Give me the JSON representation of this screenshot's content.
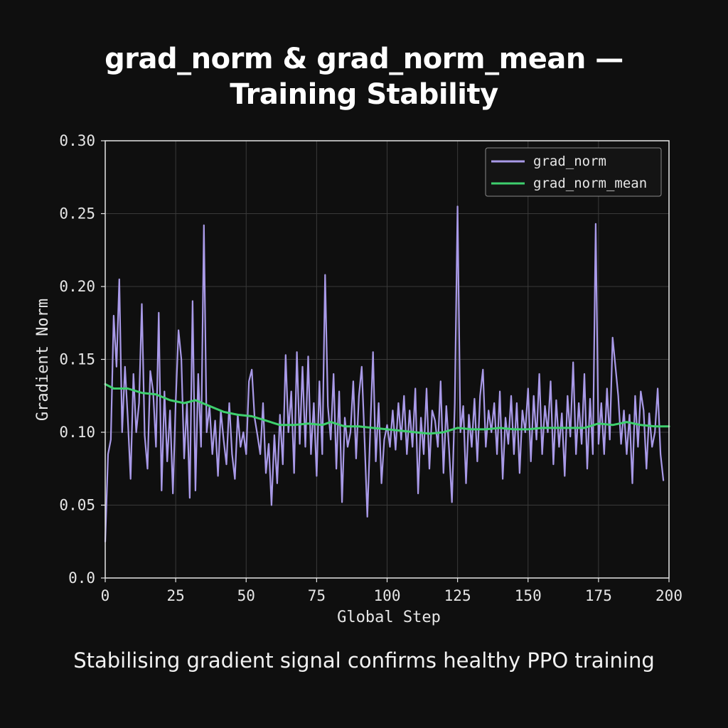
{
  "title_line1": "grad_norm & grad_norm_mean —",
  "title_line2": "Training Stability",
  "caption": "Stabilising gradient signal confirms healthy PPO training",
  "colors": {
    "background": "#0f0f0f",
    "grad_norm": "#a99ae8",
    "grad_norm_mean": "#3ecf6e",
    "grid": "#3a3a3a",
    "axes": "#e6e6e6"
  },
  "chart_data": {
    "type": "line",
    "xlabel": "Global Step",
    "ylabel": "Gradient Norm",
    "xlim": [
      0,
      200
    ],
    "ylim": [
      0,
      0.3
    ],
    "xticks": [
      0,
      25,
      50,
      75,
      100,
      125,
      150,
      175,
      200
    ],
    "xtick_labels": [
      "0",
      "25",
      "50",
      "75",
      "100",
      "125",
      "150",
      "175",
      "200"
    ],
    "yticks": [
      0.0,
      0.05,
      0.1,
      0.15,
      0.2,
      0.25,
      0.3
    ],
    "ytick_labels": [
      "0.0",
      "0.05",
      "0.10",
      "0.15",
      "0.20",
      "0.25",
      "0.30"
    ],
    "grid": true,
    "legend_position": "top-right",
    "series": [
      {
        "name": "grad_norm",
        "color": "#a99ae8",
        "points": [
          [
            0,
            0.025
          ],
          [
            1,
            0.085
          ],
          [
            2,
            0.095
          ],
          [
            3,
            0.18
          ],
          [
            4,
            0.145
          ],
          [
            5,
            0.205
          ],
          [
            6,
            0.1
          ],
          [
            7,
            0.145
          ],
          [
            8,
            0.11
          ],
          [
            9,
            0.068
          ],
          [
            10,
            0.14
          ],
          [
            11,
            0.1
          ],
          [
            12,
            0.12
          ],
          [
            13,
            0.188
          ],
          [
            14,
            0.098
          ],
          [
            15,
            0.075
          ],
          [
            16,
            0.142
          ],
          [
            17,
            0.128
          ],
          [
            18,
            0.09
          ],
          [
            19,
            0.182
          ],
          [
            20,
            0.06
          ],
          [
            21,
            0.128
          ],
          [
            22,
            0.08
          ],
          [
            23,
            0.115
          ],
          [
            24,
            0.058
          ],
          [
            25,
            0.12
          ],
          [
            26,
            0.17
          ],
          [
            27,
            0.15
          ],
          [
            28,
            0.082
          ],
          [
            29,
            0.12
          ],
          [
            30,
            0.055
          ],
          [
            31,
            0.19
          ],
          [
            32,
            0.06
          ],
          [
            33,
            0.14
          ],
          [
            34,
            0.09
          ],
          [
            35,
            0.242
          ],
          [
            36,
            0.1
          ],
          [
            37,
            0.118
          ],
          [
            38,
            0.085
          ],
          [
            39,
            0.108
          ],
          [
            40,
            0.07
          ],
          [
            41,
            0.115
          ],
          [
            42,
            0.095
          ],
          [
            43,
            0.078
          ],
          [
            44,
            0.12
          ],
          [
            45,
            0.085
          ],
          [
            46,
            0.068
          ],
          [
            47,
            0.112
          ],
          [
            48,
            0.09
          ],
          [
            49,
            0.1
          ],
          [
            50,
            0.085
          ],
          [
            51,
            0.135
          ],
          [
            52,
            0.143
          ],
          [
            53,
            0.11
          ],
          [
            54,
            0.098
          ],
          [
            55,
            0.085
          ],
          [
            56,
            0.12
          ],
          [
            57,
            0.072
          ],
          [
            58,
            0.092
          ],
          [
            59,
            0.05
          ],
          [
            60,
            0.098
          ],
          [
            61,
            0.065
          ],
          [
            62,
            0.112
          ],
          [
            63,
            0.078
          ],
          [
            64,
            0.153
          ],
          [
            65,
            0.1
          ],
          [
            66,
            0.128
          ],
          [
            67,
            0.072
          ],
          [
            68,
            0.155
          ],
          [
            69,
            0.092
          ],
          [
            70,
            0.145
          ],
          [
            71,
            0.09
          ],
          [
            72,
            0.152
          ],
          [
            73,
            0.085
          ],
          [
            74,
            0.12
          ],
          [
            75,
            0.07
          ],
          [
            76,
            0.135
          ],
          [
            77,
            0.085
          ],
          [
            78,
            0.208
          ],
          [
            79,
            0.118
          ],
          [
            80,
            0.095
          ],
          [
            81,
            0.14
          ],
          [
            82,
            0.075
          ],
          [
            83,
            0.128
          ],
          [
            84,
            0.052
          ],
          [
            85,
            0.11
          ],
          [
            86,
            0.09
          ],
          [
            87,
            0.1
          ],
          [
            88,
            0.135
          ],
          [
            89,
            0.082
          ],
          [
            90,
            0.125
          ],
          [
            91,
            0.145
          ],
          [
            92,
            0.095
          ],
          [
            93,
            0.042
          ],
          [
            94,
            0.1
          ],
          [
            95,
            0.155
          ],
          [
            96,
            0.08
          ],
          [
            97,
            0.12
          ],
          [
            98,
            0.065
          ],
          [
            99,
            0.095
          ],
          [
            100,
            0.105
          ],
          [
            101,
            0.09
          ],
          [
            102,
            0.115
          ],
          [
            103,
            0.088
          ],
          [
            104,
            0.12
          ],
          [
            105,
            0.095
          ],
          [
            106,
            0.125
          ],
          [
            107,
            0.085
          ],
          [
            108,
            0.115
          ],
          [
            109,
            0.09
          ],
          [
            110,
            0.13
          ],
          [
            111,
            0.058
          ],
          [
            112,
            0.11
          ],
          [
            113,
            0.085
          ],
          [
            114,
            0.13
          ],
          [
            115,
            0.075
          ],
          [
            116,
            0.115
          ],
          [
            117,
            0.108
          ],
          [
            118,
            0.09
          ],
          [
            119,
            0.135
          ],
          [
            120,
            0.072
          ],
          [
            121,
            0.118
          ],
          [
            122,
            0.088
          ],
          [
            123,
            0.052
          ],
          [
            124,
            0.12
          ],
          [
            125,
            0.255
          ],
          [
            126,
            0.1
          ],
          [
            127,
            0.118
          ],
          [
            128,
            0.065
          ],
          [
            129,
            0.112
          ],
          [
            130,
            0.09
          ],
          [
            131,
            0.123
          ],
          [
            132,
            0.08
          ],
          [
            133,
            0.125
          ],
          [
            134,
            0.143
          ],
          [
            135,
            0.09
          ],
          [
            136,
            0.115
          ],
          [
            137,
            0.1
          ],
          [
            138,
            0.12
          ],
          [
            139,
            0.085
          ],
          [
            140,
            0.128
          ],
          [
            141,
            0.068
          ],
          [
            142,
            0.11
          ],
          [
            143,
            0.092
          ],
          [
            144,
            0.125
          ],
          [
            145,
            0.085
          ],
          [
            146,
            0.12
          ],
          [
            147,
            0.072
          ],
          [
            148,
            0.115
          ],
          [
            149,
            0.1
          ],
          [
            150,
            0.13
          ],
          [
            151,
            0.08
          ],
          [
            152,
            0.125
          ],
          [
            153,
            0.095
          ],
          [
            154,
            0.14
          ],
          [
            155,
            0.085
          ],
          [
            156,
            0.118
          ],
          [
            157,
            0.1
          ],
          [
            158,
            0.135
          ],
          [
            159,
            0.078
          ],
          [
            160,
            0.122
          ],
          [
            161,
            0.09
          ],
          [
            162,
            0.113
          ],
          [
            163,
            0.07
          ],
          [
            164,
            0.125
          ],
          [
            165,
            0.097
          ],
          [
            166,
            0.148
          ],
          [
            167,
            0.085
          ],
          [
            168,
            0.12
          ],
          [
            169,
            0.092
          ],
          [
            170,
            0.14
          ],
          [
            171,
            0.075
          ],
          [
            172,
            0.123
          ],
          [
            173,
            0.085
          ],
          [
            174,
            0.243
          ],
          [
            175,
            0.092
          ],
          [
            176,
            0.12
          ],
          [
            177,
            0.085
          ],
          [
            178,
            0.13
          ],
          [
            179,
            0.095
          ],
          [
            180,
            0.165
          ],
          [
            181,
            0.145
          ],
          [
            182,
            0.125
          ],
          [
            183,
            0.092
          ],
          [
            184,
            0.115
          ],
          [
            185,
            0.085
          ],
          [
            186,
            0.112
          ],
          [
            187,
            0.065
          ],
          [
            188,
            0.125
          ],
          [
            189,
            0.09
          ],
          [
            190,
            0.128
          ],
          [
            191,
            0.115
          ],
          [
            192,
            0.075
          ],
          [
            193,
            0.113
          ],
          [
            194,
            0.09
          ],
          [
            195,
            0.1
          ],
          [
            196,
            0.13
          ],
          [
            197,
            0.085
          ],
          [
            198,
            0.067
          ]
        ]
      },
      {
        "name": "grad_norm_mean",
        "color": "#3ecf6e",
        "points": [
          [
            0,
            0.133
          ],
          [
            3,
            0.13
          ],
          [
            8,
            0.13
          ],
          [
            13,
            0.127
          ],
          [
            18,
            0.126
          ],
          [
            23,
            0.122
          ],
          [
            28,
            0.12
          ],
          [
            32,
            0.122
          ],
          [
            37,
            0.118
          ],
          [
            42,
            0.114
          ],
          [
            47,
            0.112
          ],
          [
            52,
            0.111
          ],
          [
            57,
            0.108
          ],
          [
            62,
            0.105
          ],
          [
            67,
            0.105
          ],
          [
            72,
            0.106
          ],
          [
            77,
            0.105
          ],
          [
            80,
            0.107
          ],
          [
            85,
            0.104
          ],
          [
            90,
            0.104
          ],
          [
            95,
            0.103
          ],
          [
            100,
            0.102
          ],
          [
            105,
            0.101
          ],
          [
            110,
            0.1
          ],
          [
            115,
            0.099
          ],
          [
            120,
            0.1
          ],
          [
            125,
            0.103
          ],
          [
            130,
            0.102
          ],
          [
            135,
            0.102
          ],
          [
            140,
            0.103
          ],
          [
            145,
            0.102
          ],
          [
            150,
            0.102
          ],
          [
            155,
            0.103
          ],
          [
            160,
            0.103
          ],
          [
            165,
            0.103
          ],
          [
            170,
            0.103
          ],
          [
            175,
            0.106
          ],
          [
            180,
            0.105
          ],
          [
            185,
            0.107
          ],
          [
            190,
            0.105
          ],
          [
            195,
            0.104
          ],
          [
            200,
            0.104
          ]
        ]
      }
    ]
  }
}
